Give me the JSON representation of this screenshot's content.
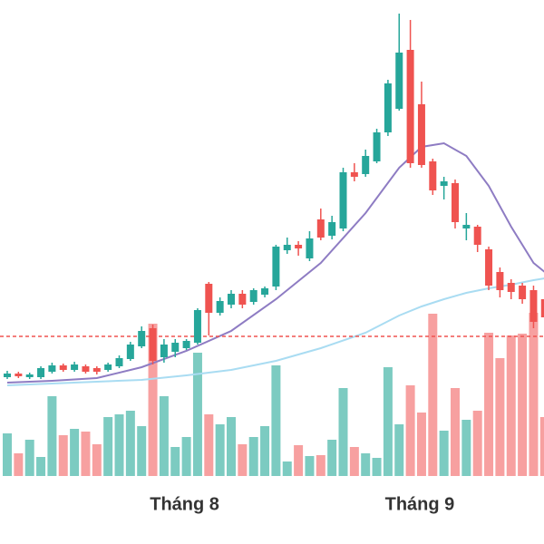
{
  "chart_data": {
    "type": "candlestick",
    "categories": [
      null,
      null,
      null,
      null,
      null,
      null,
      null,
      null,
      null,
      null,
      null,
      null,
      null,
      null,
      null,
      null,
      "Tháng 8",
      null,
      null,
      null,
      null,
      null,
      null,
      null,
      null,
      null,
      null,
      null,
      null,
      null,
      null,
      null,
      null,
      null,
      null,
      null,
      null,
      "Tháng 9",
      null,
      null,
      null,
      null,
      null,
      null,
      null,
      null,
      null,
      null,
      null
    ],
    "open": [
      184,
      188,
      184,
      184,
      190,
      197,
      192,
      196,
      194,
      192,
      196,
      204,
      218,
      238,
      206,
      212,
      216,
      222,
      287,
      255,
      264,
      276,
      267,
      275,
      284,
      324,
      330,
      315,
      358,
      340,
      348,
      410,
      408,
      422,
      454,
      480,
      545,
      485,
      422,
      395,
      398,
      348,
      350,
      325,
      300,
      288,
      285,
      280,
      270
    ],
    "high": [
      191,
      190,
      189,
      196,
      200,
      199,
      201,
      198,
      196,
      200,
      208,
      223,
      240,
      242,
      226,
      226,
      226,
      260,
      289,
      272,
      280,
      280,
      282,
      284,
      330,
      338,
      334,
      345,
      370,
      362,
      415,
      420,
      435,
      458,
      512,
      585,
      578,
      510,
      425,
      405,
      402,
      365,
      352,
      328,
      305,
      292,
      288,
      285,
      275
    ],
    "low": [
      182,
      183,
      182,
      182,
      188,
      190,
      190,
      188,
      187,
      190,
      194,
      202,
      216,
      198,
      200,
      206,
      214,
      220,
      230,
      252,
      260,
      260,
      264,
      272,
      280,
      320,
      318,
      312,
      335,
      336,
      345,
      400,
      405,
      420,
      450,
      478,
      415,
      415,
      385,
      380,
      348,
      335,
      322,
      280,
      272,
      270,
      265,
      238,
      245
    ],
    "close": [
      188,
      185,
      187,
      194,
      197,
      192,
      198,
      190,
      190,
      198,
      205,
      220,
      235,
      202,
      220,
      222,
      224,
      258,
      255,
      268,
      276,
      264,
      280,
      282,
      328,
      330,
      326,
      337,
      338,
      355,
      410,
      405,
      428,
      454,
      508,
      542,
      420,
      418,
      390,
      400,
      355,
      352,
      330,
      285,
      280,
      278,
      270,
      245,
      250
    ],
    "volume": [
      47,
      25,
      40,
      21,
      88,
      45,
      52,
      49,
      35,
      65,
      68,
      72,
      55,
      168,
      88,
      32,
      43,
      136,
      68,
      57,
      65,
      35,
      43,
      55,
      122,
      16,
      34,
      22,
      23,
      40,
      97,
      32,
      25,
      20,
      120,
      57,
      100,
      70,
      179,
      50,
      97,
      62,
      72,
      158,
      130,
      155,
      157,
      180,
      65
    ],
    "ylim": [
      0,
      600
    ],
    "volume_ylim": [
      0,
      525
    ],
    "up_color": "#26a69a",
    "down_color": "#ef5350",
    "up_volume_color": "#7ccbc1",
    "down_volume_color": "#f7a0a0",
    "lines": [
      {
        "color": "#8e7cc3",
        "x": [
          0,
          4,
          8,
          12,
          16,
          20,
          24,
          28,
          32,
          35,
          37,
          39,
          41,
          43,
          45,
          47,
          48
        ],
        "values": [
          178,
          180,
          183,
          195,
          213,
          235,
          270,
          310,
          365,
          415,
          438,
          442,
          428,
          395,
          350,
          310,
          300
        ]
      },
      {
        "color": "#a9dcf2",
        "x": [
          0,
          4,
          8,
          12,
          16,
          20,
          24,
          28,
          32,
          35,
          37,
          39,
          41,
          43,
          45,
          47,
          48
        ],
        "values": [
          175,
          177,
          179,
          181,
          186,
          192,
          202,
          216,
          233,
          252,
          262,
          270,
          277,
          282,
          286,
          291,
          293
        ]
      }
    ],
    "reference_line": {
      "value": 229,
      "color": "#ef5350"
    }
  }
}
